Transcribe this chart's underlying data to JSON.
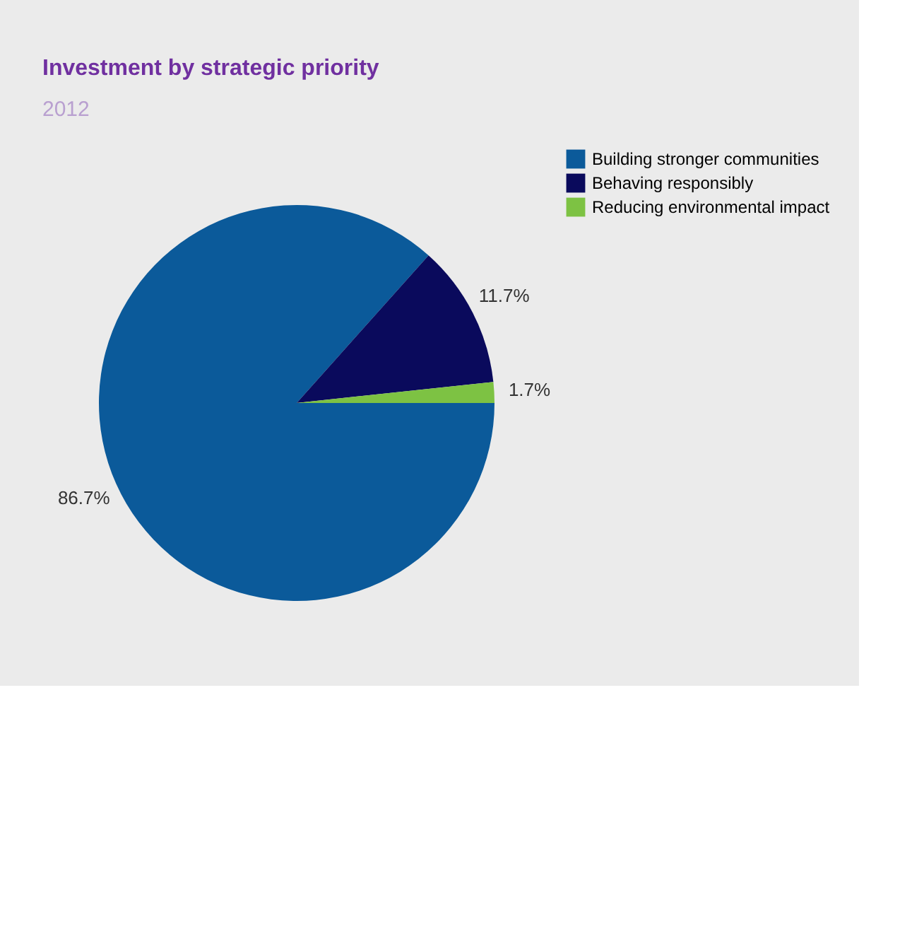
{
  "chart_data": {
    "type": "pie",
    "title": "Investment by strategic priority",
    "subtitle": "2012",
    "categories": [
      "Building stronger communities",
      "Behaving responsibly",
      "Reducing environmental impact"
    ],
    "values": [
      86.7,
      11.7,
      1.7
    ],
    "colors": [
      "#0b5a9a",
      "#0a0a5c",
      "#7dc243"
    ],
    "value_labels": [
      "86.7%",
      "11.7%",
      "1.7%"
    ],
    "legend": "right"
  }
}
